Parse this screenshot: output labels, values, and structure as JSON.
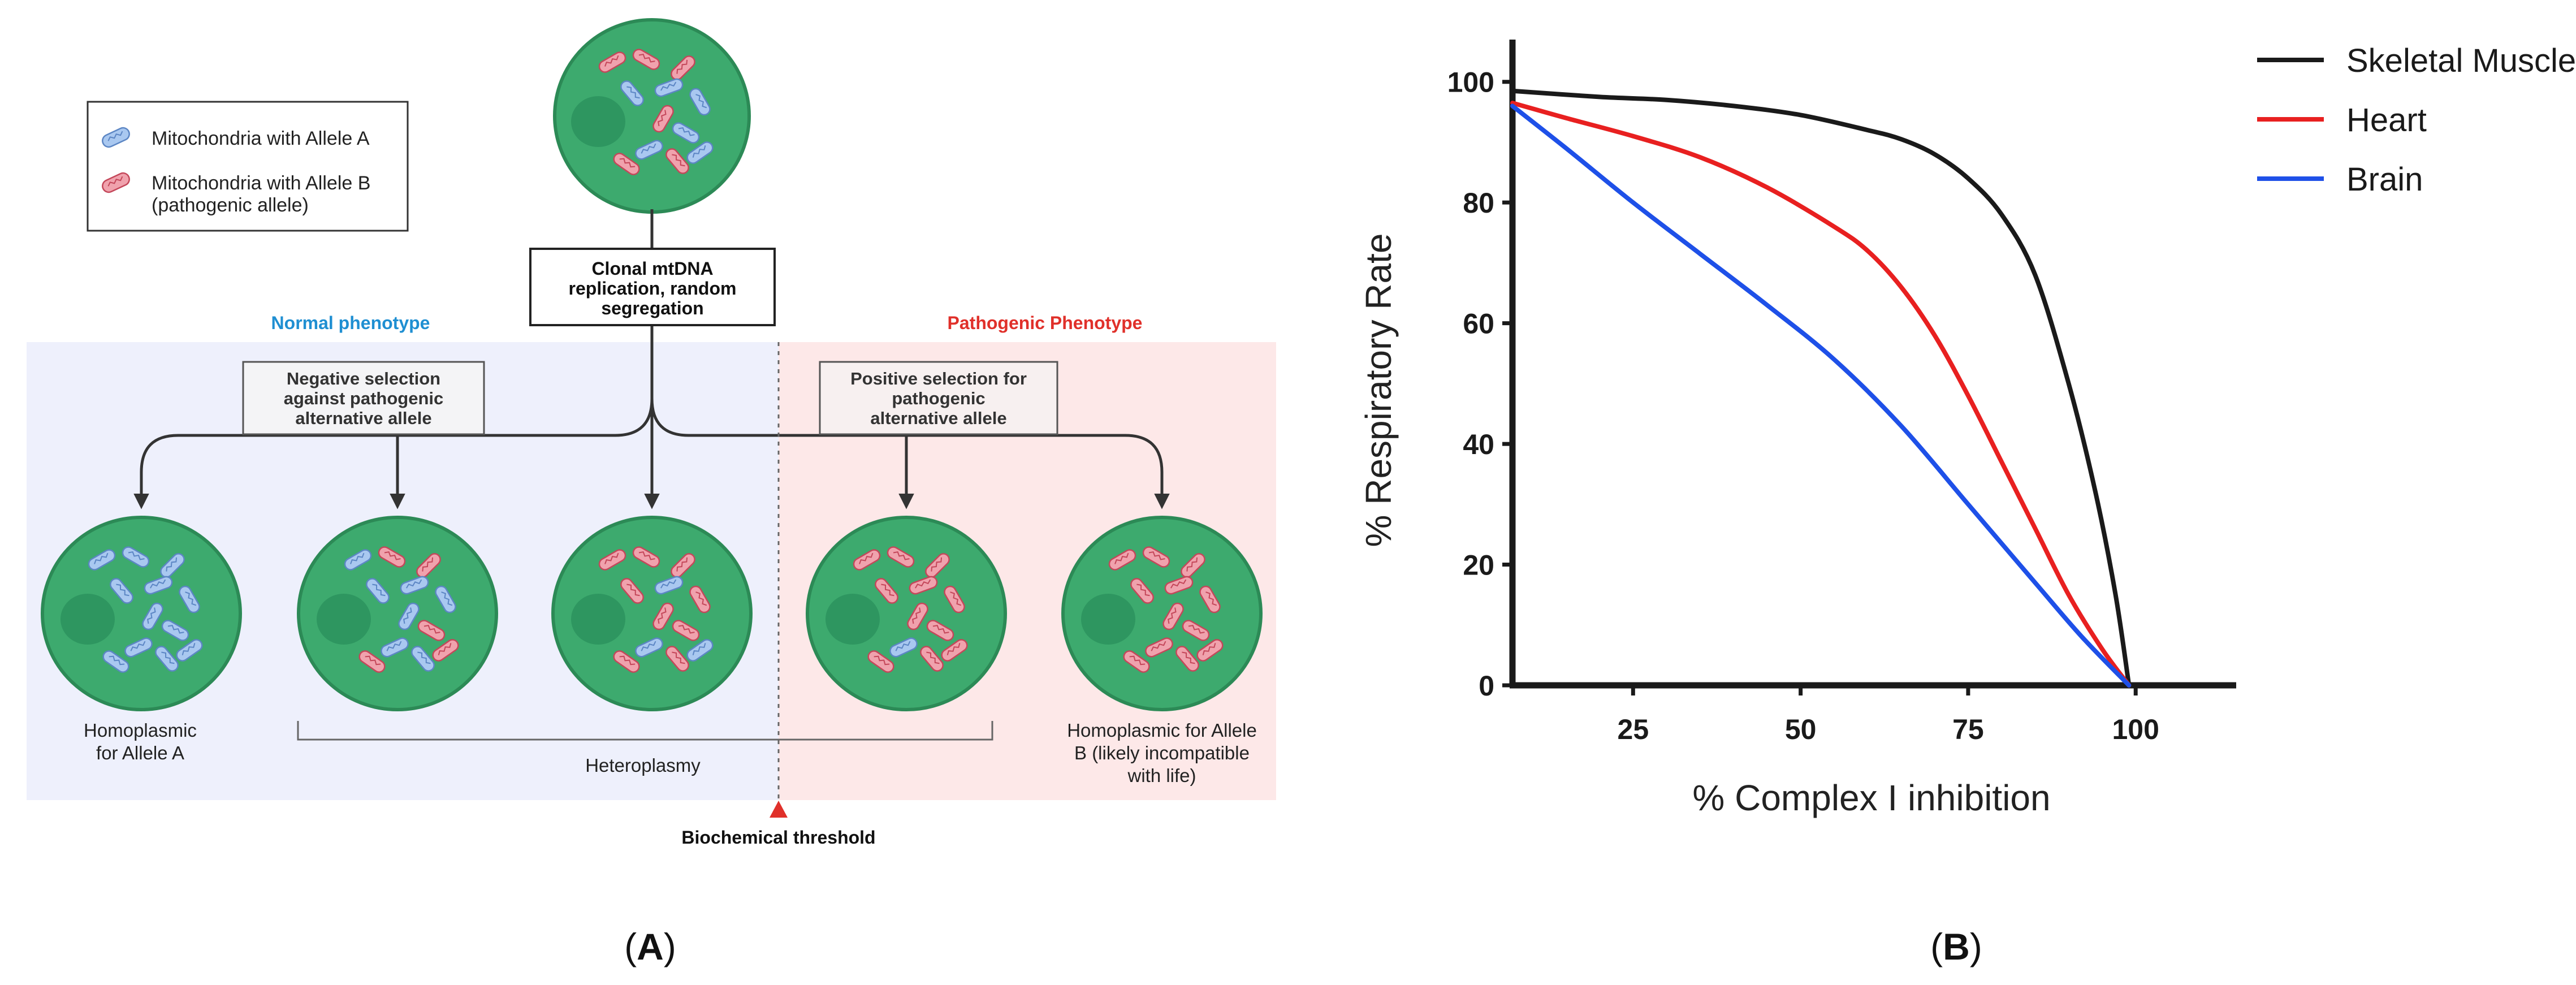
{
  "panel_a": {
    "legend": [
      {
        "label": "Mitochondria with Allele A",
        "color": "#a9c8f0"
      },
      {
        "label": "Mitochondria with Allele B",
        "label_2": "(pathogenic allele)",
        "color": "#f0a2ad"
      }
    ],
    "source_box": [
      "Clonal mtDNA",
      "replication, random",
      "segregation"
    ],
    "normal_phenotype": "Normal phenotype",
    "pathogenic_phenotype": "Pathogenic Phenotype",
    "neg_selection": [
      "Negative selection",
      "against pathogenic",
      "alternative allele"
    ],
    "pos_selection": [
      "Positive selection for",
      "pathogenic",
      "alternative allele"
    ],
    "cell_labels": {
      "homoplasmic_a": [
        "Homoplasmic",
        "for Allele A"
      ],
      "heteroplasmy": "Heteroplasmy",
      "homoplasmic_b": [
        "Homoplasmic for Allele",
        "B (likely incompatible",
        "with life)"
      ]
    },
    "threshold": "Biochemical threshold",
    "panel_label": {
      "open": "(",
      "letter": "A",
      "close": ")"
    },
    "colors": {
      "normal_bg": "#eef0fc",
      "pathogenic_bg": "#fde8e8",
      "normal_text": "#1f8fd2",
      "pathogenic_text": "#e0302a",
      "cell_fill": "#3daa6e",
      "cell_stroke": "#2c8a56",
      "nucleus": "#2e9660",
      "allele_a": "#a9c8f0",
      "allele_b": "#f0a2ad",
      "threshold_marker": "#e0302a"
    }
  },
  "chart_data": {
    "type": "line",
    "xlabel": "% Complex I inhibition",
    "ylabel": "% Respiratory Rate",
    "xlim": [
      7,
      115
    ],
    "ylim": [
      0,
      107
    ],
    "xticks": [
      25,
      50,
      75,
      100
    ],
    "yticks": [
      0,
      20,
      40,
      60,
      80,
      100
    ],
    "legend_position": "top-right",
    "series": [
      {
        "name": "Skeletal Muscle",
        "color": "#1a1a1a",
        "x": [
          7,
          20,
          30,
          40,
          50,
          60,
          65,
          70,
          75,
          80,
          85,
          90,
          94,
          97,
          99
        ],
        "y": [
          98.5,
          97.5,
          97,
          96,
          94.5,
          92,
          90.5,
          88,
          84,
          78,
          68,
          50,
          32,
          15,
          0
        ]
      },
      {
        "name": "Heart",
        "color": "#e82020",
        "x": [
          7,
          15,
          25,
          35,
          45,
          55,
          60,
          65,
          70,
          75,
          80,
          85,
          90,
          95,
          99
        ],
        "y": [
          96.5,
          94,
          91,
          87.5,
          82.5,
          76,
          72,
          66,
          58,
          48,
          37,
          26,
          15,
          6,
          0
        ]
      },
      {
        "name": "Brain",
        "color": "#1e50e8",
        "x": [
          7,
          15,
          25,
          35,
          45,
          55,
          65,
          75,
          85,
          92,
          99
        ],
        "y": [
          96,
          89,
          80,
          71.5,
          63,
          54,
          43,
          30,
          17,
          8,
          0
        ]
      }
    ],
    "panel_label": {
      "open": "(",
      "letter": "B",
      "close": ")"
    }
  }
}
